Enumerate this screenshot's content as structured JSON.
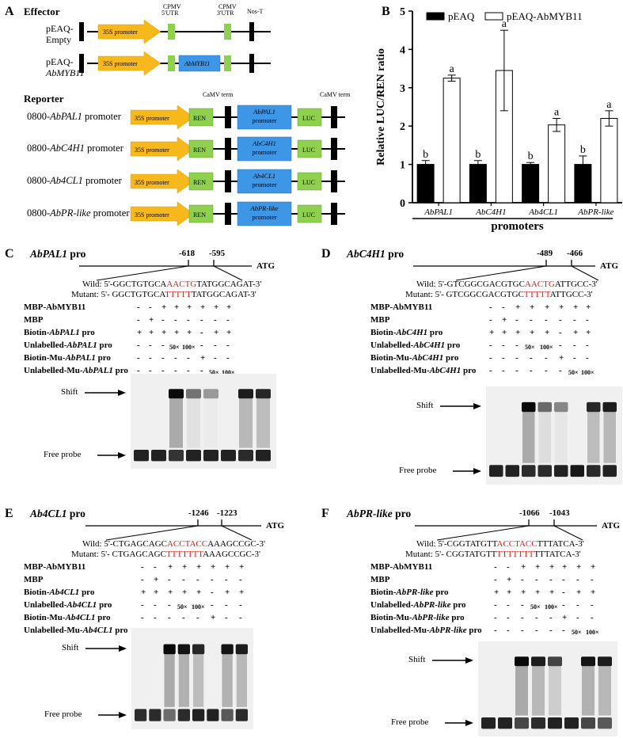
{
  "panel_A": {
    "letter": "A",
    "effector_title": "Effector",
    "vec1_l1": "pEAQ-",
    "vec1_l2": "Empty",
    "vec2_l1": "pEAQ-",
    "vec2_l2": "AbMYB11",
    "promoter_35s": "35S promoter",
    "cpmv5_l1": "CPMV",
    "cpmv5_l2": "5'UTR",
    "cpmv3_l1": "CPMV",
    "cpmv3_l2": "3'UTR",
    "nos_t": "Nos-T",
    "gene": "AbMYB11",
    "reporter_title": "Reporter",
    "camv_term": "CaMV term",
    "ren": "REN",
    "luc": "LUC",
    "promoter_word": "promoter",
    "rep_prefix": "0800-",
    "rep_suffix": " promoter",
    "reporters": [
      "AbPAL1",
      "AbC4H1",
      "Ab4CL1",
      "AbPR-like"
    ]
  },
  "panel_B": {
    "letter": "B"
  },
  "chart_data": {
    "type": "bar",
    "categories": [
      "AbPAL1",
      "AbC4H1",
      "Ab4CL1",
      "AbPR-like"
    ],
    "series": [
      {
        "name": "pEAQ",
        "values": [
          1.0,
          1.0,
          1.0,
          1.0
        ],
        "errors": [
          0.1,
          0.1,
          0.05,
          0.22
        ],
        "letters": [
          "b",
          "b",
          "b",
          "b"
        ],
        "color": "#000000"
      },
      {
        "name": "pEAQ-AbMYB11",
        "values": [
          3.25,
          3.45,
          2.03,
          2.2
        ],
        "errors": [
          0.08,
          1.05,
          0.17,
          0.2
        ],
        "letters": [
          "a",
          "a",
          "a",
          "a"
        ],
        "color": "#ffffff"
      }
    ],
    "ylabel": "Relative LUC/REN ratio",
    "xlabel": "promoters",
    "ylim": [
      0,
      5
    ],
    "yticks": [
      0,
      1,
      2,
      3,
      4,
      5
    ]
  },
  "emsa_common": {
    "wild_prefix": "Wild: ",
    "mutant_prefix": "Mutant: ",
    "free_probe": "Free probe",
    "shift": "Shift",
    "atg": "ATG",
    "row_mbp_myb": "MBP-AbMYB11",
    "row_mbp": "MBP",
    "pro": " pro",
    "biotin": "Biotin-",
    "unlabelled": "Unlabelled-",
    "biotin_mu": "Biotin-Mu-",
    "unlabelled_mu": "Unlabelled-Mu-",
    "x50": "50×",
    "x100": "100×",
    "signs": [
      [
        "-",
        "-",
        "+",
        "+",
        "+",
        "+",
        "+",
        "+"
      ],
      [
        "-",
        "+",
        "-",
        "-",
        "-",
        "-",
        "-",
        "-"
      ],
      [
        "+",
        "+",
        "+",
        "+",
        "+",
        "-",
        "+",
        "+"
      ],
      [
        "-",
        "-",
        "-",
        "50×",
        "100×",
        "-",
        "-",
        "-"
      ],
      [
        "-",
        "-",
        "-",
        "-",
        "-",
        "+",
        "-",
        "-"
      ],
      [
        "-",
        "-",
        "-",
        "-",
        "-",
        "-",
        "50×",
        "100×"
      ]
    ]
  },
  "emsa_panels": [
    {
      "letter": "C",
      "gene": "AbPAL1",
      "pos1": "-618",
      "pos2": "-595",
      "wild_a": "5'-GGCTGTGCA",
      "wild_b": "AACTG",
      "wild_c": "TATGGCAGAT-3'",
      "mut_a": "5'- GGCTGTGCA",
      "mut_b": "TTTTT",
      "mut_c": "TATGGCAGAT-3'"
    },
    {
      "letter": "D",
      "gene": "AbC4H1",
      "pos1": "-489",
      "pos2": "-466",
      "wild_a": "5'-GTCGGCGACGTGC",
      "wild_b": "AACTG",
      "wild_c": "ATTGCC-3'",
      "mut_a": "5'- GTCGGCGACGTGC",
      "mut_b": "TTTTT",
      "mut_c": "ATTGCC-3'"
    },
    {
      "letter": "E",
      "gene": "Ab4CL1",
      "pos1": "-1246",
      "pos2": "-1223",
      "wild_a": "5'-CTGAGCAGC",
      "wild_b": "ACCTACC",
      "wild_c": "AAAGCCGC-3'",
      "mut_a": "5'- CTGAGCAGC",
      "mut_b": "TTTTTTT",
      "mut_c": "AAAGCCGC-3'"
    },
    {
      "letter": "F",
      "gene": "AbPR-like",
      "pos1": "-1066",
      "pos2": "-1043",
      "wild_a": "5'-CGGTATGTT",
      "wild_b": "ACCTACC",
      "wild_c": "TTTATCA-3'",
      "mut_a": "5'- CGGTATGTT",
      "mut_b": "TTTTTTT",
      "mut_c": "TTTATCA-3'"
    }
  ]
}
